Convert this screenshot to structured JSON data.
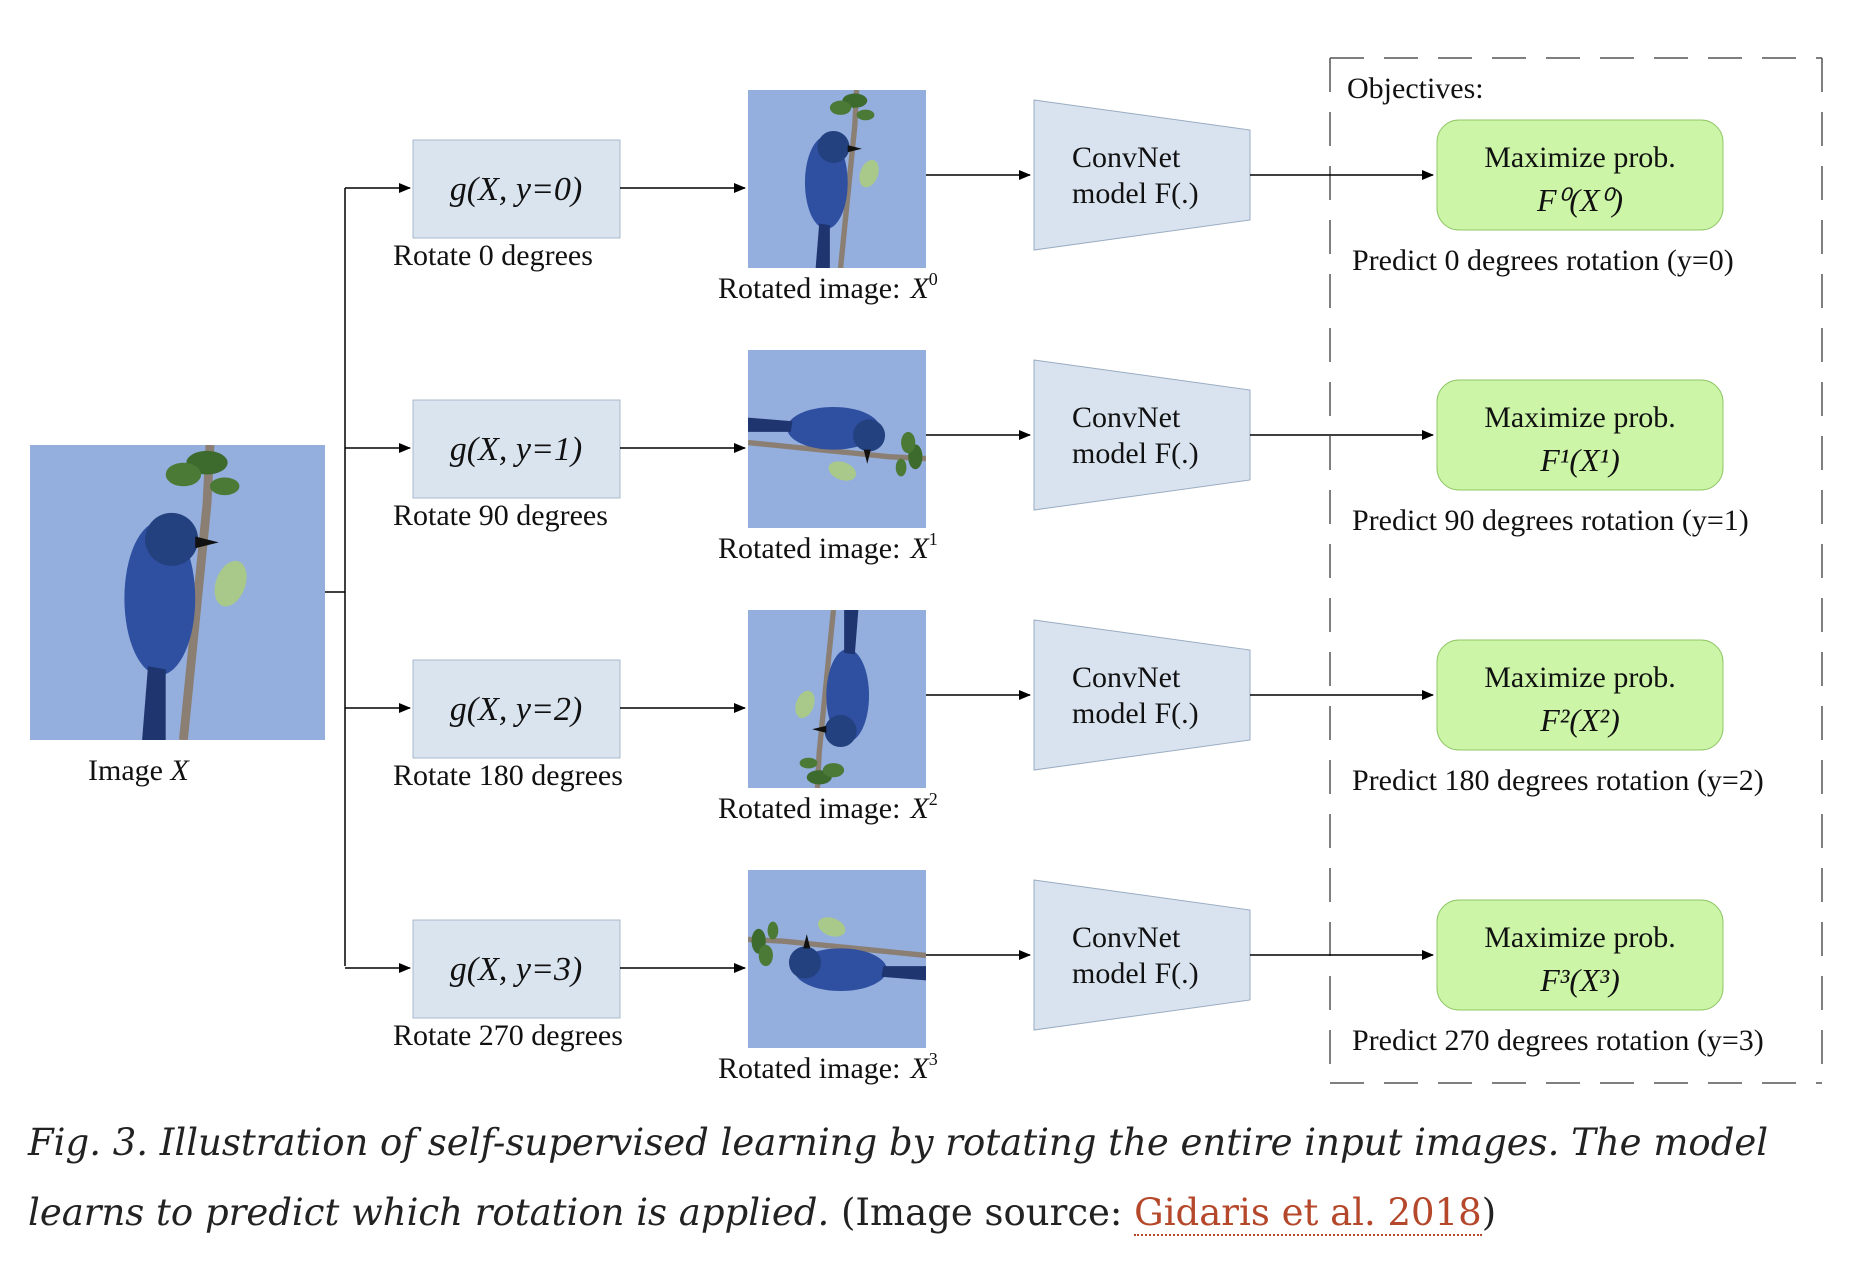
{
  "input": {
    "label_text": "Image",
    "label_var": "X"
  },
  "rows": [
    {
      "transform": "g(X, y=0)",
      "rotate_label": "Rotate 0 degrees",
      "rotated_text": "Rotated image:",
      "rotated_var": "X",
      "sup": "0",
      "model_line1": "ConvNet",
      "model_line2": "model F(.)",
      "objective_line1": "Maximize prob.",
      "objective_formula": "F⁰(X⁰)",
      "predict": "Predict 0 degrees rotation (y=0)",
      "rotation_deg": 0
    },
    {
      "transform": "g(X, y=1)",
      "rotate_label": "Rotate 90 degrees",
      "rotated_text": "Rotated image:",
      "rotated_var": "X",
      "sup": "1",
      "model_line1": "ConvNet",
      "model_line2": "model F(.)",
      "objective_line1": "Maximize prob.",
      "objective_formula": "F¹(X¹)",
      "predict": "Predict 90 degrees rotation (y=1)",
      "rotation_deg": 90
    },
    {
      "transform": "g(X, y=2)",
      "rotate_label": "Rotate 180 degrees",
      "rotated_text": "Rotated image:",
      "rotated_var": "X",
      "sup": "2",
      "model_line1": "ConvNet",
      "model_line2": "model F(.)",
      "objective_line1": "Maximize prob.",
      "objective_formula": "F²(X²)",
      "predict": "Predict 180 degrees rotation (y=2)",
      "rotation_deg": 180
    },
    {
      "transform": "g(X, y=3)",
      "rotate_label": "Rotate 270 degrees",
      "rotated_text": "Rotated image:",
      "rotated_var": "X",
      "sup": "3",
      "model_line1": "ConvNet",
      "model_line2": "model F(.)",
      "objective_line1": "Maximize prob.",
      "objective_formula": "F³(X³)",
      "predict": "Predict 270 degrees rotation (y=3)",
      "rotation_deg": 270
    }
  ],
  "objectives_title": "Objectives:",
  "caption": {
    "text": "Fig. 3. Illustration of self-supervised learning by rotating the entire input images. The model learns to predict which rotation is applied. ",
    "source_prefix": "(Image source: ",
    "link_text": "Gidaris et al. 2018",
    "source_suffix": ")"
  },
  "colors": {
    "transform_box": "#dae4ef",
    "model_box": "#d8e3ef",
    "objective_box": "#ccf5a8",
    "image_bg": "#94aede",
    "bird": "#2f4fa0",
    "link": "#b5472a"
  }
}
